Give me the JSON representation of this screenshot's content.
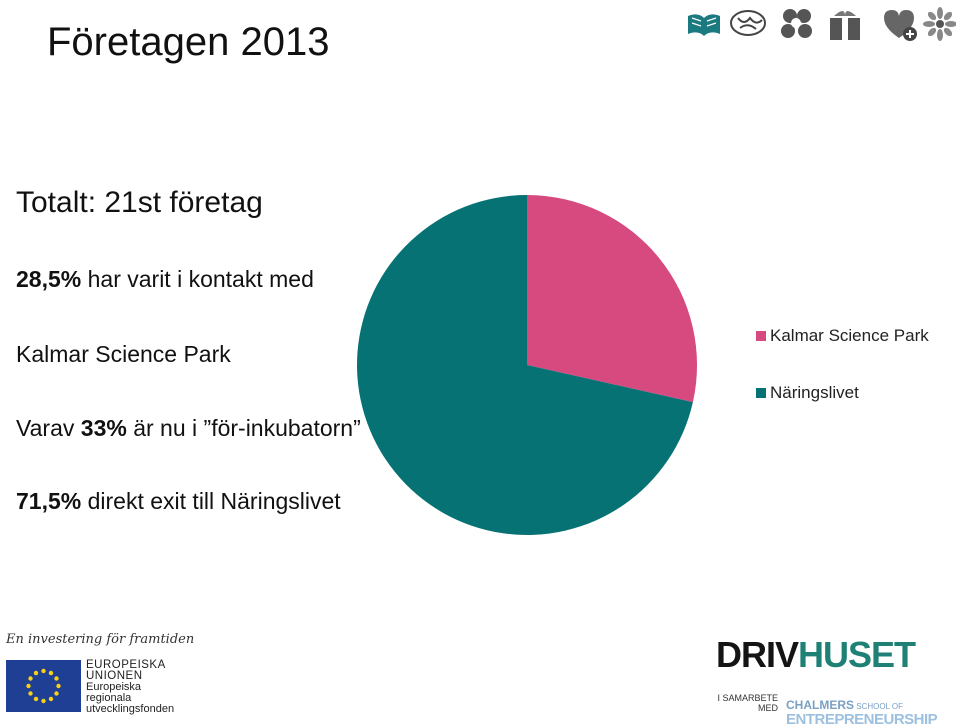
{
  "title": "Företagen 2013",
  "text_lines": {
    "total": "Totalt: 21st företag",
    "contact_pct": "28,5%",
    "contact_rest": " har varit i kontakt med",
    "contact_org": "Kalmar Science Park",
    "incub_pre": "Varav ",
    "incub_pct": "33%",
    "incub_rest": " är nu i ”för-inkubatorn”",
    "exit_pct": "71,5%",
    "exit_rest": " direkt exit till Näringslivet"
  },
  "chart_data": {
    "type": "pie",
    "title": "",
    "slices": [
      {
        "label": "Kalmar Science Park",
        "value": 28.5,
        "color": "#d74a80"
      },
      {
        "label": "Näringslivet",
        "value": 71.5,
        "color": "#077274"
      }
    ],
    "start_angle_deg": 0,
    "direction": "clockwise",
    "legend_position": "right"
  },
  "logos": {
    "eu_tagline": "En investering för framtiden",
    "eu_line1": "EUROPEISKA",
    "eu_line2": "UNIONEN",
    "eu_line3": "Europeiska",
    "eu_line4": "regionala",
    "eu_line5": "utvecklingsfonden",
    "drivhuset_part1": "DRIV",
    "drivhuset_part2": "HUSET",
    "samarbete": "I SAMARBETE MED",
    "chalmers_part1": "CHALMERS",
    "chalmers_part2": " SCHOOL OF",
    "chalmers_part3": "ENTREPRENEURSHIP"
  },
  "top_icons": [
    "book-icon",
    "brain-icon",
    "people-icon",
    "gift-icon",
    "heart-plus-icon",
    "flower-icon"
  ],
  "colors": {
    "accent_teal": "#1a7a80",
    "eu_blue": "#1f3f95",
    "eu_gold": "#f7d117"
  }
}
